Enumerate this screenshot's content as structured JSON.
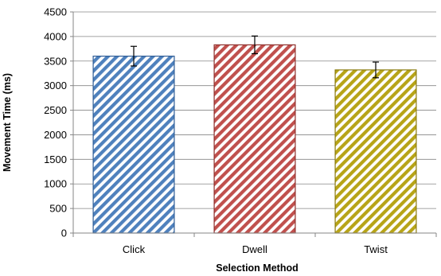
{
  "chart_data": {
    "type": "bar",
    "categories": [
      "Click",
      "Dwell",
      "Twist"
    ],
    "values": [
      3600,
      3830,
      3320
    ],
    "error": [
      200,
      180,
      160
    ],
    "xlabel": "Selection Method",
    "ylabel": "Movement Time (ms)",
    "ylim": [
      0,
      4500
    ],
    "yticks": [
      0,
      500,
      1000,
      1500,
      2000,
      2500,
      3000,
      3500,
      4000,
      4500
    ],
    "grid": true,
    "legend": "none",
    "bar_colors": [
      "#4F81BD",
      "#C0504D",
      "#B7A417"
    ],
    "bar_edge_colors": [
      "#2E5C96",
      "#8E2F2C",
      "#8A7A10"
    ],
    "pattern": "diagonal-stripes"
  }
}
